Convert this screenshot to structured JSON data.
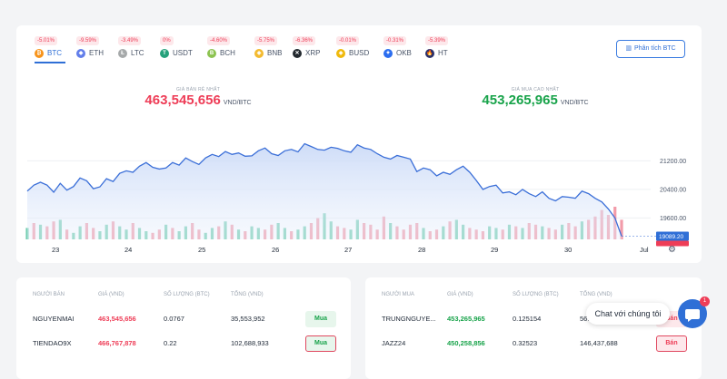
{
  "coins": [
    {
      "symbol": "BTC",
      "change": "-5.01%",
      "color": "#f7931a",
      "glyph": "₿",
      "icon": "btc-icon"
    },
    {
      "symbol": "ETH",
      "change": "-9.59%",
      "color": "#627eea",
      "glyph": "◆",
      "icon": "eth-icon"
    },
    {
      "symbol": "LTC",
      "change": "-3.49%",
      "color": "#a6a9aa",
      "glyph": "Ł",
      "icon": "ltc-icon"
    },
    {
      "symbol": "USDT",
      "change": "0%",
      "color": "#26a17b",
      "glyph": "T",
      "icon": "usdt-icon"
    },
    {
      "symbol": "BCH",
      "change": "-4.60%",
      "color": "#8dc351",
      "glyph": "B",
      "icon": "bch-icon"
    },
    {
      "symbol": "BNB",
      "change": "-5.75%",
      "color": "#f3ba2f",
      "glyph": "◈",
      "icon": "bnb-icon"
    },
    {
      "symbol": "XRP",
      "change": "-6.36%",
      "color": "#23292f",
      "glyph": "✕",
      "icon": "xrp-icon"
    },
    {
      "symbol": "BUSD",
      "change": "-0.01%",
      "color": "#f0b90b",
      "glyph": "◈",
      "icon": "busd-icon"
    },
    {
      "symbol": "OKB",
      "change": "-0.31%",
      "color": "#2b6def",
      "glyph": "✦",
      "icon": "okb-icon"
    },
    {
      "symbol": "HT",
      "change": "-5.39%",
      "color": "#2a3069",
      "glyph": "🔥",
      "icon": "ht-icon"
    }
  ],
  "analysis_button": "Phân tích BTC",
  "sell_price": {
    "label": "GIÁ BÁN RẺ NHẤT",
    "value": "463,545,656",
    "unit": "VND/BTC"
  },
  "buy_price": {
    "label": "GIÁ MUA CAO NHẤT",
    "value": "453,265,965",
    "unit": "VND/BTC"
  },
  "chart_data": {
    "type": "line",
    "x_ticks": [
      "23",
      "24",
      "25",
      "26",
      "27",
      "28",
      "29",
      "30",
      "Jul"
    ],
    "y_ticks": [
      "19600.00",
      "20400.00",
      "21200.00"
    ],
    "ylim": [
      19000,
      22200
    ],
    "last_price": "19089.20",
    "line_color": "#3b6fd8",
    "volume_colors": {
      "up": "#5cc6a3",
      "down": "#f08a9a"
    },
    "series": [
      {
        "values": [
          20350,
          20520,
          20600,
          20520,
          20320,
          20570,
          20380,
          20480,
          20720,
          20640,
          20420,
          20470,
          20700,
          20620,
          20850,
          20920,
          20880,
          21050,
          21150,
          21020,
          20970,
          21000,
          21150,
          21080,
          21280,
          21180,
          21100,
          21280,
          21380,
          21320,
          21460,
          21380,
          21420,
          21330,
          21340,
          21480,
          21560,
          21400,
          21350,
          21480,
          21520,
          21450,
          21680,
          21600,
          21520,
          21500,
          21580,
          21550,
          21480,
          21440,
          21650,
          21560,
          21520,
          21400,
          21300,
          21250,
          21350,
          21300,
          21250,
          20900,
          21000,
          20950,
          20780,
          20880,
          20820,
          20950,
          21050,
          20880,
          20650,
          20400,
          20480,
          20520,
          20300,
          20330,
          20250,
          20400,
          20280,
          20200,
          20330,
          20150,
          20080,
          20200,
          20180,
          20150,
          20350,
          20280,
          20150,
          20050,
          19850,
          19600,
          19089
        ]
      }
    ],
    "volumes": [
      0.35,
      0.5,
      0.45,
      0.4,
      0.55,
      0.6,
      0.3,
      0.2,
      0.4,
      0.5,
      0.35,
      0.25,
      0.45,
      0.55,
      0.4,
      0.3,
      0.5,
      0.35,
      0.25,
      0.2,
      0.3,
      0.45,
      0.35,
      0.25,
      0.4,
      0.5,
      0.3,
      0.2,
      0.35,
      0.4,
      0.55,
      0.45,
      0.3,
      0.25,
      0.4,
      0.35,
      0.3,
      0.45,
      0.5,
      0.35,
      0.25,
      0.3,
      0.4,
      0.5,
      0.65,
      0.8,
      0.55,
      0.4,
      0.35,
      0.3,
      0.6,
      0.5,
      0.45,
      0.3,
      0.7,
      0.5,
      0.4,
      0.3,
      0.45,
      0.5,
      0.35,
      0.25,
      0.3,
      0.4,
      0.55,
      0.6,
      0.45,
      0.35,
      0.3,
      0.25,
      0.4,
      0.35,
      0.3,
      0.45,
      0.4,
      0.35,
      0.5,
      0.45,
      0.4,
      0.35,
      0.3,
      0.45,
      0.5,
      0.4,
      0.55,
      0.6,
      0.7,
      0.9,
      0.75,
      1.0,
      0.6
    ],
    "volume_dirs": [
      1,
      0,
      1,
      0,
      0,
      1,
      0,
      1,
      1,
      0,
      0,
      1,
      1,
      0,
      1,
      1,
      0,
      1,
      1,
      0,
      0,
      1,
      0,
      1,
      1,
      0,
      0,
      1,
      1,
      0,
      1,
      0,
      1,
      0,
      1,
      1,
      0,
      0,
      1,
      1,
      0,
      1,
      1,
      0,
      0,
      1,
      1,
      0,
      0,
      1,
      1,
      0,
      0,
      0,
      0,
      1,
      0,
      0,
      0,
      0,
      1,
      0,
      0,
      1,
      0,
      1,
      1,
      0,
      0,
      0,
      1,
      1,
      0,
      1,
      0,
      1,
      0,
      0,
      1,
      0,
      0,
      1,
      0,
      0,
      1,
      0,
      0,
      0,
      0,
      0,
      0
    ]
  },
  "sellers": {
    "headers": [
      "NGƯỜI BÁN",
      "GIÁ (VND)",
      "SỐ LƯỢNG (BTC)",
      "TỔNG (VND)"
    ],
    "rows": [
      {
        "name": "NGUYENMAI",
        "price": "463,545,656",
        "amount": "0.0767",
        "total": "35,553,952",
        "action": "Mua"
      },
      {
        "name": "TIENDAO9X",
        "price": "466,767,878",
        "amount": "0.22",
        "total": "102,688,933",
        "action": "Mua"
      }
    ]
  },
  "buyers": {
    "headers": [
      "NGƯỜI MUA",
      "GIÁ (VND)",
      "SỐ LƯỢNG (BTC)",
      "TỔNG (VND)"
    ],
    "rows": [
      {
        "name": "TRUNGNGUYE...",
        "price": "453,265,965",
        "amount": "0.125154",
        "total": "56...",
        "action": "Bán"
      },
      {
        "name": "JAZZ24",
        "price": "450,258,856",
        "amount": "0.32523",
        "total": "146,437,688",
        "action": "Bán"
      }
    ]
  },
  "chat": {
    "label": "Chat với chúng tôi",
    "badge": "1"
  }
}
